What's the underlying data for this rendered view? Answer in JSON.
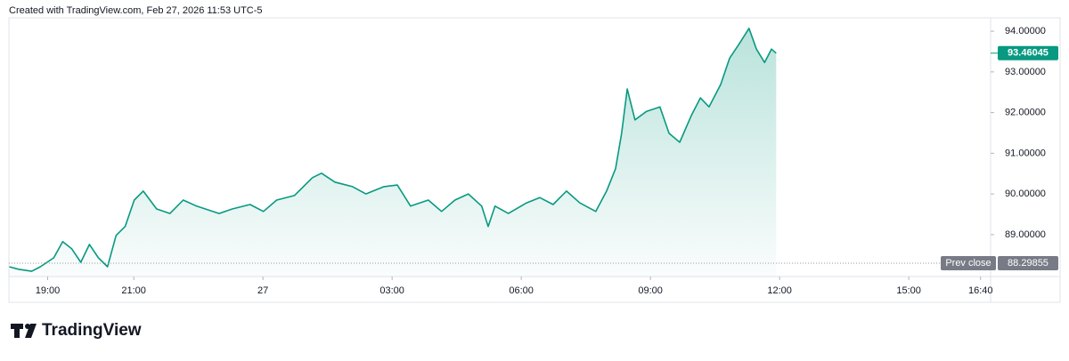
{
  "header": {
    "credit": "Created with TradingView.com, Feb 27, 2026 11:53 UTC-5"
  },
  "chart_data": {
    "type": "area",
    "color": "#089981",
    "x": [
      18.11,
      18.32,
      18.63,
      18.83,
      19.14,
      19.35,
      19.56,
      19.77,
      19.97,
      20.18,
      20.39,
      20.59,
      20.8,
      21.01,
      21.22,
      21.53,
      21.84,
      22.15,
      22.46,
      22.98,
      23.29,
      23.7,
      24.01,
      24.32,
      24.73,
      25.15,
      25.36,
      25.67,
      26.08,
      26.39,
      26.81,
      27.12,
      27.43,
      27.84,
      28.15,
      28.46,
      28.77,
      29.08,
      29.23,
      29.39,
      29.7,
      30.12,
      30.43,
      30.74,
      31.05,
      31.36,
      31.73,
      31.98,
      32.19,
      32.33,
      32.46,
      32.64,
      32.91,
      33.22,
      33.43,
      33.68,
      33.95,
      34.16,
      34.36,
      34.63,
      34.84,
      35.05,
      35.29,
      35.46,
      35.65,
      35.81,
      35.92
    ],
    "values": [
      88.21,
      88.15,
      88.1,
      88.21,
      88.43,
      88.83,
      88.65,
      88.32,
      88.76,
      88.43,
      88.21,
      88.98,
      89.2,
      89.85,
      90.07,
      89.63,
      89.52,
      89.85,
      89.7,
      89.52,
      89.63,
      89.74,
      89.57,
      89.85,
      89.96,
      90.4,
      90.51,
      90.29,
      90.18,
      90.0,
      90.18,
      90.22,
      89.7,
      89.85,
      89.57,
      89.85,
      90.0,
      89.7,
      89.2,
      89.7,
      89.52,
      89.78,
      89.91,
      89.74,
      90.07,
      89.78,
      89.57,
      90.07,
      90.62,
      91.49,
      92.58,
      91.82,
      92.03,
      92.14,
      91.49,
      91.27,
      91.93,
      92.36,
      92.14,
      92.69,
      93.34,
      93.67,
      94.07,
      93.56,
      93.23,
      93.56,
      93.46045
    ],
    "xlim": [
      18.1,
      40.9
    ],
    "xticks": [
      {
        "value": 19,
        "label": "19:00"
      },
      {
        "value": 21,
        "label": "21:00"
      },
      {
        "value": 24,
        "label": "27"
      },
      {
        "value": 27,
        "label": "03:00"
      },
      {
        "value": 30,
        "label": "06:00"
      },
      {
        "value": 33,
        "label": "09:00"
      },
      {
        "value": 36,
        "label": "12:00"
      },
      {
        "value": 39,
        "label": "15:00"
      },
      {
        "value": 40.667,
        "label": "16:40"
      }
    ],
    "ylim": [
      87.97,
      94.33
    ],
    "yticks": [
      {
        "value": 89,
        "label": "89.00000"
      },
      {
        "value": 90,
        "label": "90.00000"
      },
      {
        "value": 91,
        "label": "91.00000"
      },
      {
        "value": 92,
        "label": "92.00000"
      },
      {
        "value": 93,
        "label": "93.00000"
      },
      {
        "value": 94,
        "label": "94.00000"
      }
    ],
    "last_price": 93.46045,
    "prev_close_label": "Prev close",
    "prev_close": 88.29855
  },
  "footer": {
    "brand": "TradingView"
  }
}
